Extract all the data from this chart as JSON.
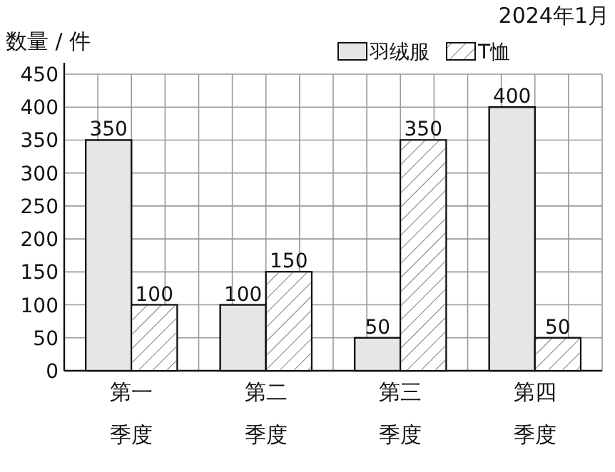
{
  "chart_data": {
    "type": "bar",
    "ylabel": "数量 / 件",
    "annotations": [
      "2024年1月"
    ],
    "categories": [
      "第一季度",
      "第二季度",
      "第三季度",
      "第四季度"
    ],
    "series": [
      {
        "name": "羽绒服",
        "color": "#e6e6e6",
        "values": [
          350,
          100,
          50,
          400
        ]
      },
      {
        "name": "T恤",
        "color": "#ffffff",
        "values": [
          100,
          150,
          350,
          50
        ]
      }
    ],
    "ylim": [
      0,
      450
    ],
    "yticks": [
      0,
      50,
      100,
      150,
      200,
      250,
      300,
      350,
      400,
      450
    ],
    "grid": true,
    "legend": "top right",
    "data_labels": true
  }
}
